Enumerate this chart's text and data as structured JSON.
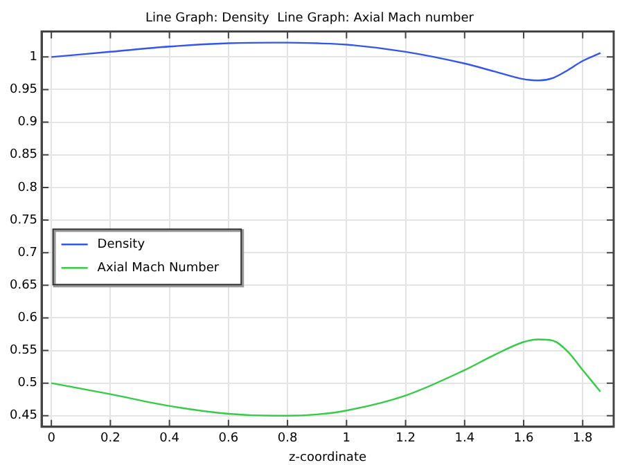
{
  "chart_data": {
    "type": "line",
    "title": "Line Graph: Density  Line Graph: Axial Mach number",
    "xlabel": "z-coordinate",
    "xlim": [
      -0.033,
      1.905
    ],
    "xticks": [
      0,
      0.2,
      0.4,
      0.6,
      0.8,
      1,
      1.2,
      1.4,
      1.6,
      1.8
    ],
    "ylim": [
      0.433,
      1.039
    ],
    "yticks": [
      0.45,
      0.5,
      0.55,
      0.6,
      0.65,
      0.7,
      0.75,
      0.8,
      0.85,
      0.9,
      0.95,
      1
    ],
    "grid": true,
    "legend": "left",
    "marker": "none",
    "line_style": "solid",
    "x": [
      0,
      0.2,
      0.4,
      0.6,
      0.75,
      0.8,
      0.9,
      1.0,
      1.2,
      1.4,
      1.5,
      1.6,
      1.65,
      1.7,
      1.75,
      1.8,
      1.86
    ],
    "series": [
      {
        "name": "Density",
        "color": "#3355ee",
        "values": [
          1.0,
          1.008,
          1.016,
          1.021,
          1.022,
          1.022,
          1.021,
          1.019,
          1.008,
          0.99,
          0.978,
          0.966,
          0.964,
          0.968,
          0.98,
          0.994,
          1.006
        ]
      },
      {
        "name": "Axial Mach Number",
        "color": "#33cc44",
        "values": [
          0.5,
          0.483,
          0.465,
          0.453,
          0.45,
          0.45,
          0.452,
          0.458,
          0.481,
          0.52,
          0.543,
          0.563,
          0.567,
          0.565,
          0.548,
          0.52,
          0.487
        ]
      }
    ]
  }
}
